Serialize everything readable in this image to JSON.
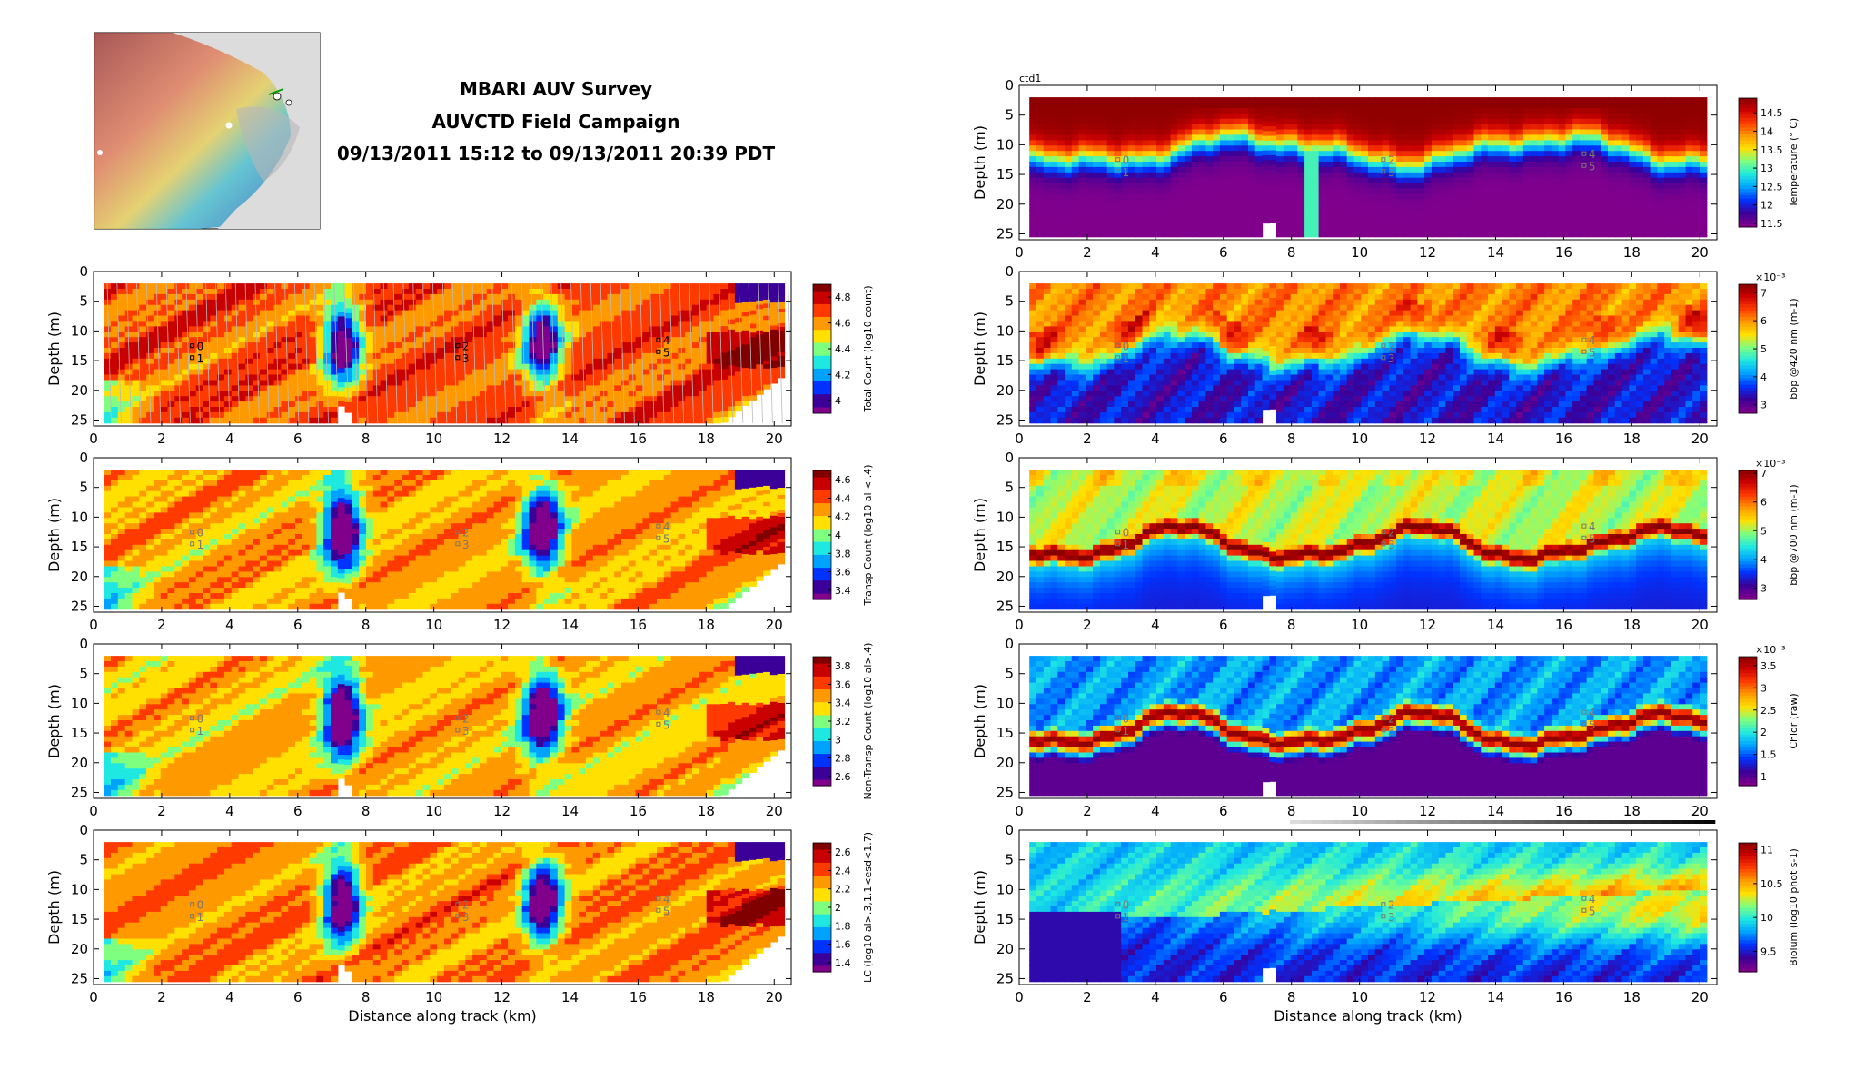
{
  "header": {
    "title_lines": [
      "MBARI AUV Survey",
      "AUVCTD Field Campaign",
      "09/13/2011 15:12 to 09/13/2011 20:39 PDT"
    ]
  },
  "colors": {
    "jet": [
      "#80008c",
      "#3a0098",
      "#0033ff",
      "#00a2ff",
      "#1fe8e0",
      "#7fff7f",
      "#ffe000",
      "#ff9900",
      "#ff3a00",
      "#c80000",
      "#800000"
    ],
    "frame": "#000000",
    "background": "#ffffff"
  },
  "chart_data": [
    {
      "id": "total-count",
      "type": "heatmap",
      "panel": "left",
      "ylabel": "Depth (m)",
      "xlabel": "",
      "cbar_label": "Total Count (log10 count)",
      "cbar_ticks": [
        "4",
        "4.2",
        "4.4",
        "4.6",
        "4.8"
      ],
      "cbar_range": [
        3.9,
        4.9
      ],
      "xlim": [
        0,
        20.5
      ],
      "ylim": [
        26,
        0
      ],
      "xticks": [
        0,
        2,
        4,
        6,
        8,
        10,
        12,
        14,
        16,
        18,
        20
      ],
      "yticks": [
        0,
        5,
        10,
        15,
        20,
        25
      ],
      "station_markers": [
        "0",
        "1",
        "2",
        "3",
        "4",
        "5"
      ],
      "scheme": "plankton",
      "bias": 0.78
    },
    {
      "id": "transp-count",
      "type": "heatmap",
      "panel": "left",
      "ylabel": "Depth (m)",
      "xlabel": "",
      "cbar_label": "Transp Count (log10 al < .4)",
      "cbar_ticks": [
        "3.4",
        "3.6",
        "3.8",
        "4",
        "4.2",
        "4.4",
        "4.6"
      ],
      "cbar_range": [
        3.3,
        4.7
      ],
      "xlim": [
        0,
        20.5
      ],
      "ylim": [
        26,
        0
      ],
      "xticks": [
        0,
        2,
        4,
        6,
        8,
        10,
        12,
        14,
        16,
        18,
        20
      ],
      "yticks": [
        0,
        5,
        10,
        15,
        20,
        25
      ],
      "station_markers": [
        "0",
        "1",
        "2",
        "3",
        "4",
        "5"
      ],
      "scheme": "plankton",
      "bias": 0.68
    },
    {
      "id": "non-transp-count",
      "type": "heatmap",
      "panel": "left",
      "ylabel": "Depth (m)",
      "xlabel": "",
      "cbar_label": "Non-Transp Count (log10 al>.4)",
      "cbar_ticks": [
        "2.6",
        "2.8",
        "3",
        "3.2",
        "3.4",
        "3.6",
        "3.8"
      ],
      "cbar_range": [
        2.5,
        3.9
      ],
      "xlim": [
        0,
        20.5
      ],
      "ylim": [
        26,
        0
      ],
      "xticks": [
        0,
        2,
        4,
        6,
        8,
        10,
        12,
        14,
        16,
        18,
        20
      ],
      "yticks": [
        0,
        5,
        10,
        15,
        20,
        25
      ],
      "station_markers": [
        "0",
        "1",
        "2",
        "3",
        "4",
        "5"
      ],
      "scheme": "plankton",
      "bias": 0.66
    },
    {
      "id": "lc",
      "type": "heatmap",
      "panel": "left",
      "ylabel": "Depth (m)",
      "xlabel": "Distance along track (km)",
      "cbar_label": "LC (log10 al>.3,1.1<esd<1.7)",
      "cbar_ticks": [
        "1.4",
        "1.6",
        "1.8",
        "2",
        "2.2",
        "2.4",
        "2.6"
      ],
      "cbar_range": [
        1.3,
        2.7
      ],
      "xlim": [
        0,
        20.5
      ],
      "ylim": [
        26,
        0
      ],
      "xticks": [
        0,
        2,
        4,
        6,
        8,
        10,
        12,
        14,
        16,
        18,
        20
      ],
      "yticks": [
        0,
        5,
        10,
        15,
        20,
        25
      ],
      "station_markers": [
        "0",
        "1",
        "2",
        "3",
        "4",
        "5"
      ],
      "scheme": "plankton",
      "bias": 0.72
    },
    {
      "id": "temperature",
      "type": "heatmap",
      "panel": "right",
      "panel_label": "ctd1",
      "ylabel": "Depth (m)",
      "xlabel": "",
      "cbar_label": "Temperature (° C)",
      "cbar_ticks": [
        "11.5",
        "12",
        "12.5",
        "13",
        "13.5",
        "14",
        "14.5"
      ],
      "cbar_range": [
        11.4,
        14.9
      ],
      "cbar_exponent": "",
      "xlim": [
        0,
        20.5
      ],
      "ylim": [
        26,
        0
      ],
      "xticks": [
        0,
        2,
        4,
        6,
        8,
        10,
        12,
        14,
        16,
        18,
        20
      ],
      "yticks": [
        0,
        5,
        10,
        15,
        20,
        25
      ],
      "station_markers": [
        "0",
        "1",
        "2",
        "3",
        "4",
        "5"
      ],
      "scheme": "temp"
    },
    {
      "id": "bbp420",
      "type": "heatmap",
      "panel": "right",
      "ylabel": "Depth (m)",
      "xlabel": "",
      "cbar_label": "bbp @420 nm (m-1)",
      "cbar_ticks": [
        "3",
        "4",
        "5",
        "6",
        "7"
      ],
      "cbar_range": [
        2.7,
        7.3
      ],
      "cbar_exponent": "×10⁻³",
      "xlim": [
        0,
        20.5
      ],
      "ylim": [
        26,
        0
      ],
      "xticks": [
        0,
        2,
        4,
        6,
        8,
        10,
        12,
        14,
        16,
        18,
        20
      ],
      "yticks": [
        0,
        5,
        10,
        15,
        20,
        25
      ],
      "station_markers": [
        "0",
        "1",
        "2",
        "3",
        "4",
        "5"
      ],
      "scheme": "bbp420"
    },
    {
      "id": "bbp700",
      "type": "heatmap",
      "panel": "right",
      "ylabel": "Depth (m)",
      "xlabel": "",
      "cbar_label": "bbp @700 nm (m-1)",
      "cbar_ticks": [
        "3",
        "4",
        "5",
        "6",
        "7"
      ],
      "cbar_range": [
        2.6,
        7.1
      ],
      "cbar_exponent": "×10⁻³",
      "xlim": [
        0,
        20.5
      ],
      "ylim": [
        26,
        0
      ],
      "xticks": [
        0,
        2,
        4,
        6,
        8,
        10,
        12,
        14,
        16,
        18,
        20
      ],
      "yticks": [
        0,
        5,
        10,
        15,
        20,
        25
      ],
      "station_markers": [
        "0",
        "1",
        "2",
        "3",
        "4",
        "5"
      ],
      "scheme": "layer"
    },
    {
      "id": "chlor",
      "type": "heatmap",
      "panel": "right",
      "ylabel": "Depth (m)",
      "xlabel": "",
      "cbar_label": "Chlor (raw)",
      "cbar_ticks": [
        "1",
        "1.5",
        "2",
        "2.5",
        "3",
        "3.5"
      ],
      "cbar_range": [
        0.8,
        3.7
      ],
      "cbar_exponent": "×10⁻³",
      "xlim": [
        0,
        20.5
      ],
      "ylim": [
        26,
        0
      ],
      "xticks": [
        0,
        2,
        4,
        6,
        8,
        10,
        12,
        14,
        16,
        18,
        20
      ],
      "yticks": [
        0,
        5,
        10,
        15,
        20,
        25
      ],
      "station_markers": [
        "0",
        "1",
        "2",
        "3",
        "4",
        "5"
      ],
      "scheme": "chl"
    },
    {
      "id": "biolum",
      "type": "heatmap",
      "panel": "right",
      "ylabel": "Depth (m)",
      "xlabel": "Distance along track (km)",
      "cbar_label": "Biolum (log10 phot s-1)",
      "cbar_ticks": [
        "9.5",
        "10",
        "10.5",
        "11"
      ],
      "cbar_range": [
        9.2,
        11.1
      ],
      "cbar_exponent": "",
      "xlim": [
        0,
        20.5
      ],
      "ylim": [
        26,
        0
      ],
      "xticks": [
        0,
        2,
        4,
        6,
        8,
        10,
        12,
        14,
        16,
        18,
        20
      ],
      "yticks": [
        0,
        5,
        10,
        15,
        20,
        25
      ],
      "station_markers": [
        "0",
        "1",
        "2",
        "3",
        "4",
        "5"
      ],
      "scheme": "biolum"
    }
  ]
}
